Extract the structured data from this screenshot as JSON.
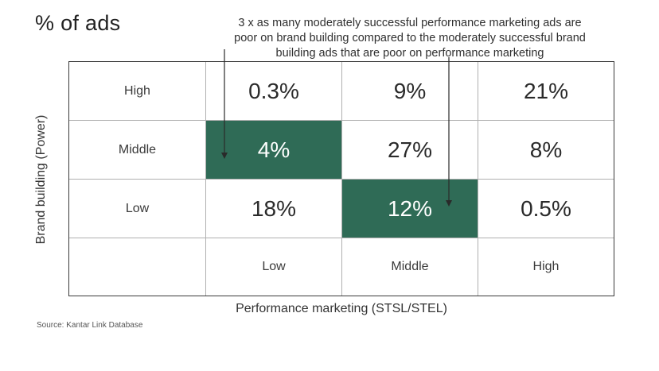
{
  "title": "% of ads",
  "annotation": "3 x as many moderately successful performance marketing ads are\npoor on brand building compared to the moderately successful brand\nbuilding ads that are poor on performance marketing",
  "source": "Source: Kantar Link Database",
  "colors": {
    "highlight": "#2f6b56",
    "border": "#3a3a3a",
    "text": "#2b2b2b"
  },
  "chart_data": {
    "type": "heatmap",
    "title": "% of ads",
    "xlabel": "Performance marketing (STSL/STEL)",
    "ylabel": "Brand building (Power)",
    "x_categories": [
      "Low",
      "Middle",
      "High"
    ],
    "y_categories": [
      "High",
      "Middle",
      "Low"
    ],
    "cells": [
      [
        "0.3%",
        "9%",
        "21%"
      ],
      [
        "4%",
        "27%",
        "8%"
      ],
      [
        "18%",
        "12%",
        "0.5%"
      ]
    ],
    "values": [
      [
        0.3,
        9,
        21
      ],
      [
        4,
        27,
        8
      ],
      [
        18,
        12,
        0.5
      ]
    ],
    "highlighted": [
      {
        "brand": "Middle",
        "performance": "Low"
      },
      {
        "brand": "Low",
        "performance": "Middle"
      }
    ],
    "unit": "%"
  }
}
